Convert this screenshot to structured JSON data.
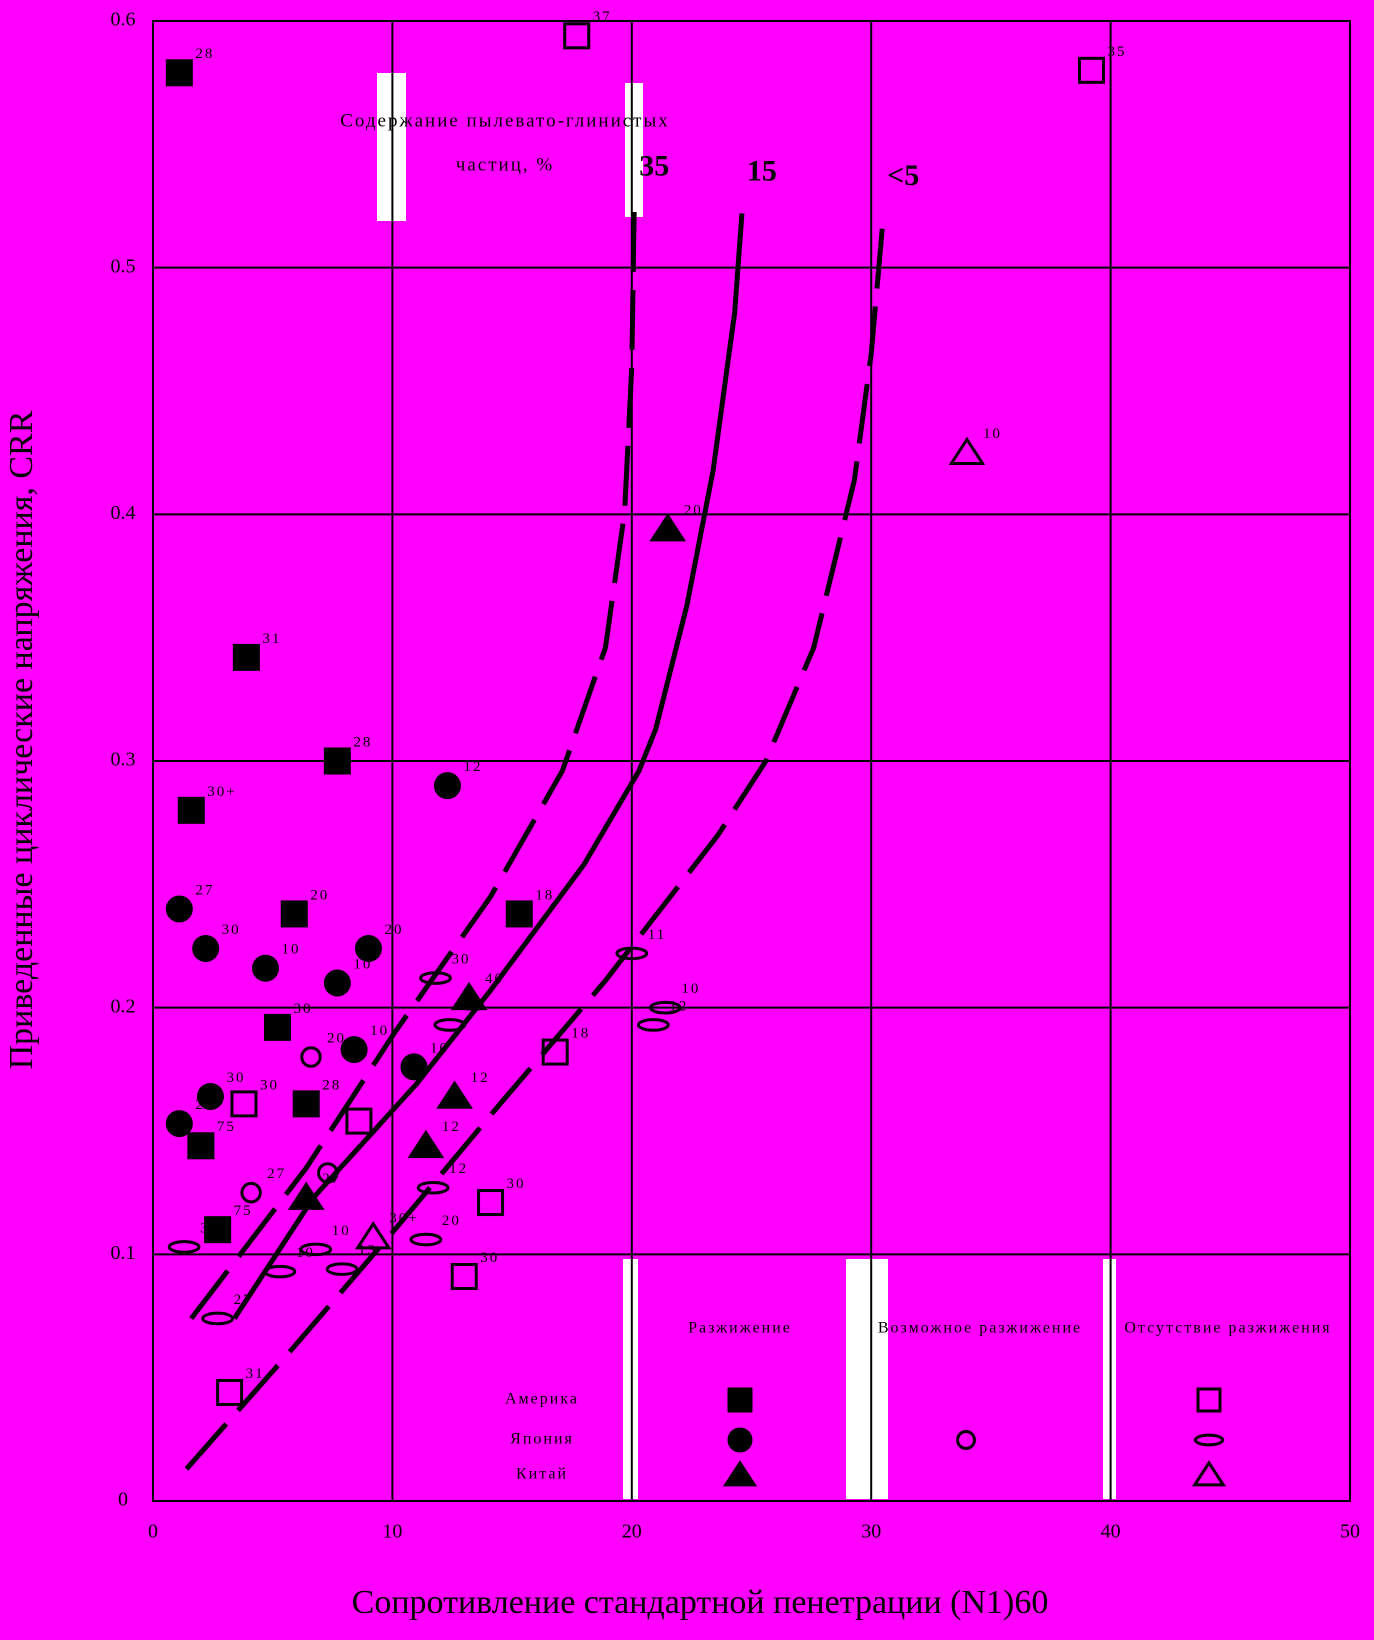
{
  "chart_data": {
    "type": "scatter",
    "xlabel": "Сопротивление стандартной пенетрации (N1)60",
    "ylabel": "Приведенные циклические напряжения, CRR",
    "annotation": [
      "Содержание пылевато-глинистых",
      "частиц, %"
    ],
    "xlim": [
      0,
      50
    ],
    "xticks": [
      0,
      10,
      20,
      30,
      40,
      50
    ],
    "ylim": [
      0,
      0.6
    ],
    "yticks": [
      0,
      0.1,
      0.2,
      0.3,
      0.4,
      0.5,
      0.6
    ],
    "grid": true,
    "color": "#000000",
    "background": "#ff00ff",
    "legend": {
      "columns": [
        "Разжижение",
        "Возможное разжижение",
        "Отсутствие разжижения"
      ],
      "rows": [
        "Америка",
        "Япония",
        "Китай"
      ]
    },
    "curves": [
      {
        "name": "35",
        "dashed": true,
        "x": [
          1.6,
          6.4,
          10.1,
          14.1,
          17.1,
          18.9,
          19.7,
          20.0,
          20.1
        ],
        "values": [
          0.074,
          0.135,
          0.19,
          0.245,
          0.296,
          0.346,
          0.401,
          0.46,
          0.524
        ]
      },
      {
        "name": "15",
        "dashed": false,
        "x": [
          3.4,
          6.7,
          11.0,
          14.1,
          18.0,
          20.3,
          21.0,
          22.3,
          23.4,
          24.3,
          24.6
        ],
        "values": [
          0.074,
          0.123,
          0.169,
          0.207,
          0.258,
          0.296,
          0.313,
          0.363,
          0.418,
          0.482,
          0.522
        ]
      },
      {
        "name": "<5",
        "dashed": true,
        "x": [
          1.4,
          5.4,
          10.1,
          14.5,
          18.9,
          23.6,
          25.6,
          27.6,
          29.3,
          30.0,
          30.5
        ],
        "values": [
          0.013,
          0.057,
          0.11,
          0.161,
          0.211,
          0.27,
          0.3,
          0.346,
          0.414,
          0.465,
          0.52
        ]
      }
    ],
    "series": [
      {
        "marker": "square",
        "filled": true,
        "x": [
          1.1,
          3.9,
          7.7,
          1.6,
          5.9,
          15.3,
          5.2,
          6.4,
          2.0,
          2.7
        ],
        "values": [
          0.579,
          0.342,
          0.3,
          0.28,
          0.238,
          0.238,
          0.192,
          0.161,
          0.144,
          0.11
        ],
        "point_labels": [
          "28",
          "31",
          "28",
          "30+",
          "20",
          "18",
          "30",
          "28",
          "75",
          "75"
        ]
      },
      {
        "marker": "circle",
        "filled": true,
        "x": [
          12.3,
          1.1,
          2.2,
          4.7,
          7.7,
          9.0,
          8.4,
          10.9,
          2.4,
          1.1
        ],
        "values": [
          0.29,
          0.24,
          0.224,
          0.216,
          0.21,
          0.224,
          0.183,
          0.176,
          0.164,
          0.153
        ],
        "point_labels": [
          "12",
          "27",
          "30",
          "10",
          "10",
          "20",
          "10",
          "10",
          "30",
          "22"
        ]
      },
      {
        "marker": "triangle",
        "filled": true,
        "x": [
          21.5,
          13.2,
          12.6,
          11.4,
          6.4
        ],
        "values": [
          0.394,
          0.204,
          0.164,
          0.144,
          0.123
        ],
        "point_labels": [
          "20",
          "40",
          "12",
          "12",
          "27"
        ]
      },
      {
        "marker": "circle",
        "filled": false,
        "x": [
          6.6,
          7.3,
          4.1
        ],
        "values": [
          0.18,
          0.133,
          0.125
        ],
        "point_labels": [
          "20",
          null,
          "27"
        ]
      },
      {
        "marker": "square",
        "filled": false,
        "x": [
          17.7,
          39.2,
          3.8,
          8.6,
          16.8,
          14.1,
          13.0,
          3.2
        ],
        "values": [
          0.594,
          0.58,
          0.161,
          0.154,
          0.182,
          0.121,
          0.091,
          0.044
        ],
        "point_labels": [
          "37",
          "35",
          "30",
          null,
          "18",
          "30",
          "30",
          "31"
        ]
      },
      {
        "marker": "ellipse",
        "filled": false,
        "x": [
          1.3,
          2.7,
          5.3,
          6.8,
          7.9,
          11.8,
          12.4,
          11.7,
          11.4,
          20.0,
          21.4,
          20.9
        ],
        "values": [
          0.103,
          0.074,
          0.093,
          0.102,
          0.094,
          0.212,
          0.193,
          0.127,
          0.106,
          0.222,
          0.2,
          0.193
        ],
        "point_labels": [
          "30",
          "27",
          "10",
          "10",
          "13",
          "30",
          "20",
          "12",
          "20",
          "11",
          "10",
          "12"
        ]
      },
      {
        "marker": "triangle",
        "filled": false,
        "x": [
          34.0,
          9.2
        ],
        "values": [
          0.425,
          0.107
        ],
        "point_labels": [
          "10",
          "30+"
        ]
      }
    ]
  }
}
